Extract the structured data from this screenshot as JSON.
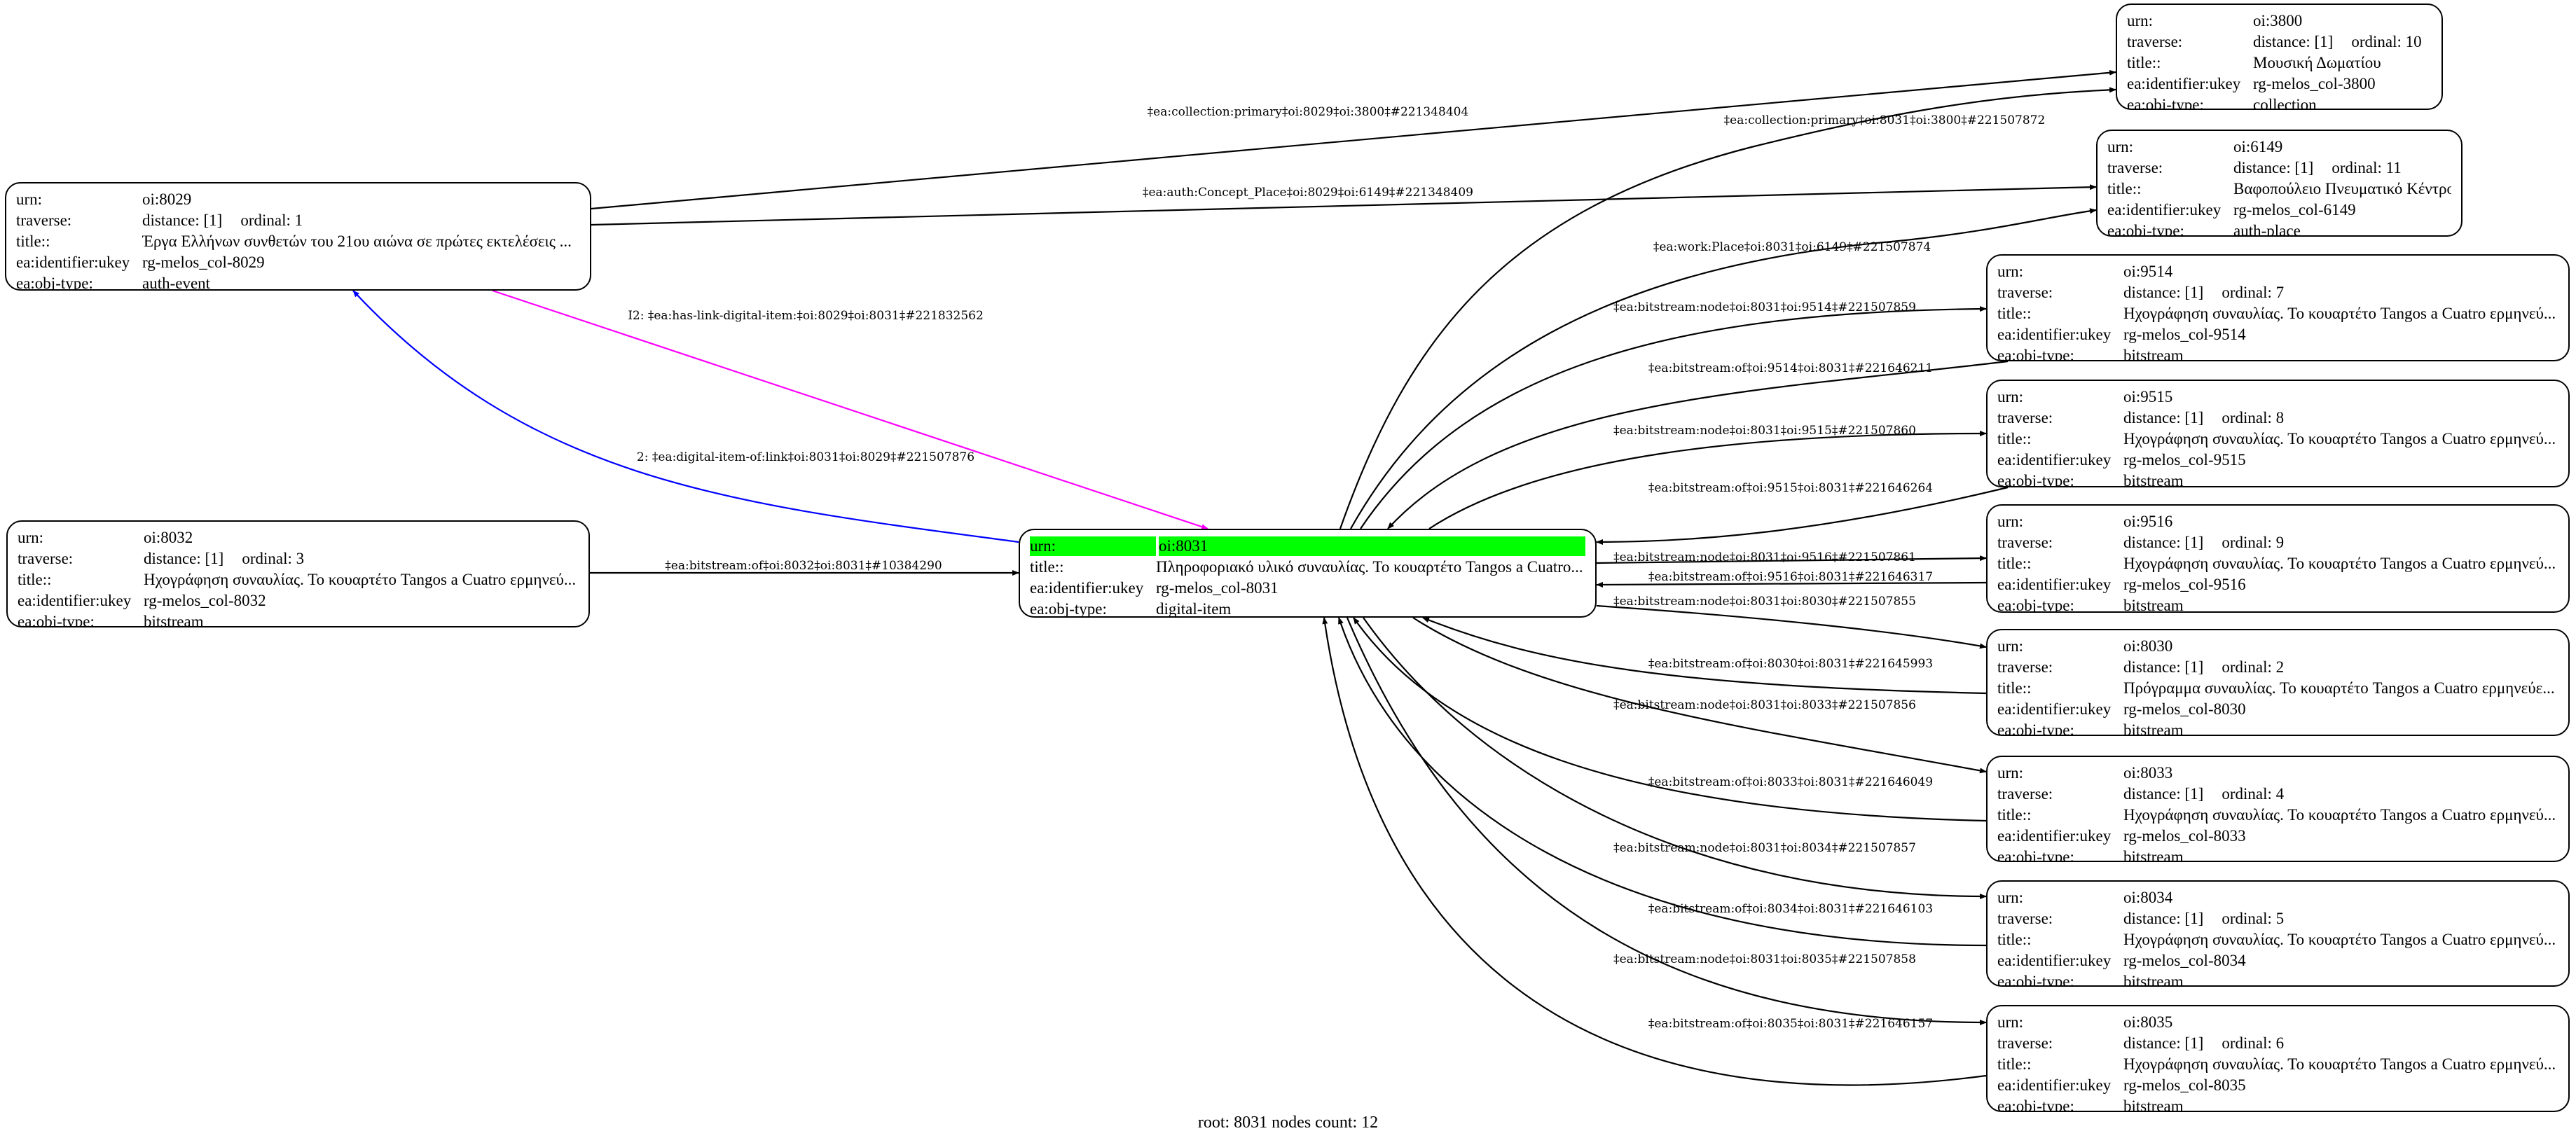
{
  "row_labels": {
    "urn": "urn:",
    "traverse": "traverse:",
    "title": "title::",
    "ukey": "ea:identifier:ukey",
    "obj_type": "ea:obj-type:"
  },
  "nodes": [
    {
      "id": "8029",
      "urn": "oi:8029",
      "distance": "distance: [1]",
      "ordinal": "ordinal: 1",
      "title": "Έργα Ελλήνων συνθετών του 21ου αιώνα σε πρώτες εκτελέσεις ...",
      "ukey": "rg-melos_col-8029",
      "obj_type": "auth-event"
    },
    {
      "id": "8032",
      "urn": "oi:8032",
      "distance": "distance: [1]",
      "ordinal": "ordinal: 3",
      "title": "Ηχογράφηση συναυλίας. Το κουαρτέτο Tangos a Cuatro ερμηνεύ...",
      "ukey": "rg-melos_col-8032",
      "obj_type": "bitstream"
    },
    {
      "id": "8031",
      "root": true,
      "highlight": "#00ff00",
      "urn": "oi:8031",
      "title": "Πληροφοριακό υλικό συναυλίας. Το κουαρτέτο Tangos a Cuatro...",
      "ukey": "rg-melos_col-8031",
      "obj_type": "digital-item"
    },
    {
      "id": "3800",
      "urn": "oi:3800",
      "distance": "distance: [1]",
      "ordinal": "ordinal: 10",
      "title": "Μουσική Δωματίου",
      "ukey": "rg-melos_col-3800",
      "obj_type": "collection"
    },
    {
      "id": "6149",
      "urn": "oi:6149",
      "distance": "distance: [1]",
      "ordinal": "ordinal: 11",
      "title": "Βαφοπούλειο Πνευματικό Κέντρο",
      "ukey": "rg-melos_col-6149",
      "obj_type": "auth-place"
    },
    {
      "id": "9514",
      "urn": "oi:9514",
      "distance": "distance: [1]",
      "ordinal": "ordinal: 7",
      "title": "Ηχογράφηση συναυλίας. Το κουαρτέτο Tangos a Cuatro ερμηνεύ...",
      "ukey": "rg-melos_col-9514",
      "obj_type": "bitstream"
    },
    {
      "id": "9515",
      "urn": "oi:9515",
      "distance": "distance: [1]",
      "ordinal": "ordinal: 8",
      "title": "Ηχογράφηση συναυλίας. Το κουαρτέτο Tangos a Cuatro ερμηνεύ...",
      "ukey": "rg-melos_col-9515",
      "obj_type": "bitstream"
    },
    {
      "id": "9516",
      "urn": "oi:9516",
      "distance": "distance: [1]",
      "ordinal": "ordinal: 9",
      "title": "Ηχογράφηση συναυλίας. Το κουαρτέτο Tangos a Cuatro ερμηνεύ...",
      "ukey": "rg-melos_col-9516",
      "obj_type": "bitstream"
    },
    {
      "id": "8030",
      "urn": "oi:8030",
      "distance": "distance: [1]",
      "ordinal": "ordinal: 2",
      "title": "Πρόγραμμα συναυλίας. Το κουαρτέτο Tangos a Cuatro ερμηνεύε...",
      "ukey": "rg-melos_col-8030",
      "obj_type": "bitstream"
    },
    {
      "id": "8033",
      "urn": "oi:8033",
      "distance": "distance: [1]",
      "ordinal": "ordinal: 4",
      "title": "Ηχογράφηση συναυλίας. Το κουαρτέτο Tangos a Cuatro ερμηνεύ...",
      "ukey": "rg-melos_col-8033",
      "obj_type": "bitstream"
    },
    {
      "id": "8034",
      "urn": "oi:8034",
      "distance": "distance: [1]",
      "ordinal": "ordinal: 5",
      "title": "Ηχογράφηση συναυλίας. Το κουαρτέτο Tangos a Cuatro ερμηνεύ...",
      "ukey": "rg-melos_col-8034",
      "obj_type": "bitstream"
    },
    {
      "id": "8035",
      "urn": "oi:8035",
      "distance": "distance: [1]",
      "ordinal": "ordinal: 6",
      "title": "Ηχογράφηση συναυλίας. Το κουαρτέτο Tangos a Cuatro ερμηνεύ...",
      "ukey": "rg-melos_col-8035",
      "obj_type": "bitstream"
    }
  ],
  "edges": [
    {
      "from": "8029",
      "to": "3800",
      "label": "‡ea:collection:primary‡oi:8029‡oi:3800‡#221348404",
      "color": "#000000"
    },
    {
      "from": "8031",
      "to": "3800",
      "label": "‡ea:collection:primary‡oi:8031‡oi:3800‡#221507872",
      "color": "#000000"
    },
    {
      "from": "8029",
      "to": "6149",
      "label": "‡ea:auth:Concept_Place‡oi:8029‡oi:6149‡#221348409",
      "color": "#000000"
    },
    {
      "from": "8031",
      "to": "6149",
      "label": "‡ea:work:Place‡oi:8031‡oi:6149‡#221507874",
      "color": "#000000"
    },
    {
      "from": "8029",
      "to": "8031",
      "label": "I2: ‡ea:has-link-digital-item:‡oi:8029‡oi:8031‡#221832562",
      "color": "#ff00ff"
    },
    {
      "from": "8031",
      "to": "8029",
      "label": "2: ‡ea:digital-item-of:link‡oi:8031‡oi:8029‡#221507876",
      "color": "#0000ff"
    },
    {
      "from": "8032",
      "to": "8031",
      "label": "‡ea:bitstream:of‡oi:8032‡oi:8031‡#10384290",
      "color": "#000000"
    },
    {
      "from": "8031",
      "to": "9514",
      "label": "‡ea:bitstream:node‡oi:8031‡oi:9514‡#221507859",
      "color": "#000000"
    },
    {
      "from": "9514",
      "to": "8031",
      "label": "‡ea:bitstream:of‡oi:9514‡oi:8031‡#221646211",
      "color": "#000000"
    },
    {
      "from": "8031",
      "to": "9515",
      "label": "‡ea:bitstream:node‡oi:8031‡oi:9515‡#221507860",
      "color": "#000000"
    },
    {
      "from": "9515",
      "to": "8031",
      "label": "‡ea:bitstream:of‡oi:9515‡oi:8031‡#221646264",
      "color": "#000000"
    },
    {
      "from": "8031",
      "to": "9516",
      "label": "‡ea:bitstream:node‡oi:8031‡oi:9516‡#221507861",
      "color": "#000000"
    },
    {
      "from": "9516",
      "to": "8031",
      "label": "‡ea:bitstream:of‡oi:9516‡oi:8031‡#221646317",
      "color": "#000000"
    },
    {
      "from": "8031",
      "to": "8030",
      "label": "‡ea:bitstream:node‡oi:8031‡oi:8030‡#221507855",
      "color": "#000000"
    },
    {
      "from": "8030",
      "to": "8031",
      "label": "‡ea:bitstream:of‡oi:8030‡oi:8031‡#221645993",
      "color": "#000000"
    },
    {
      "from": "8031",
      "to": "8033",
      "label": "‡ea:bitstream:node‡oi:8031‡oi:8033‡#221507856",
      "color": "#000000"
    },
    {
      "from": "8033",
      "to": "8031",
      "label": "‡ea:bitstream:of‡oi:8033‡oi:8031‡#221646049",
      "color": "#000000"
    },
    {
      "from": "8031",
      "to": "8034",
      "label": "‡ea:bitstream:node‡oi:8031‡oi:8034‡#221507857",
      "color": "#000000"
    },
    {
      "from": "8034",
      "to": "8031",
      "label": "‡ea:bitstream:of‡oi:8034‡oi:8031‡#221646103",
      "color": "#000000"
    },
    {
      "from": "8031",
      "to": "8035",
      "label": "‡ea:bitstream:node‡oi:8031‡oi:8035‡#221507858",
      "color": "#000000"
    },
    {
      "from": "8035",
      "to": "8031",
      "label": "‡ea:bitstream:of‡oi:8035‡oi:8031‡#221646157",
      "color": "#000000"
    }
  ],
  "footer": "root: 8031 nodes count: 12"
}
